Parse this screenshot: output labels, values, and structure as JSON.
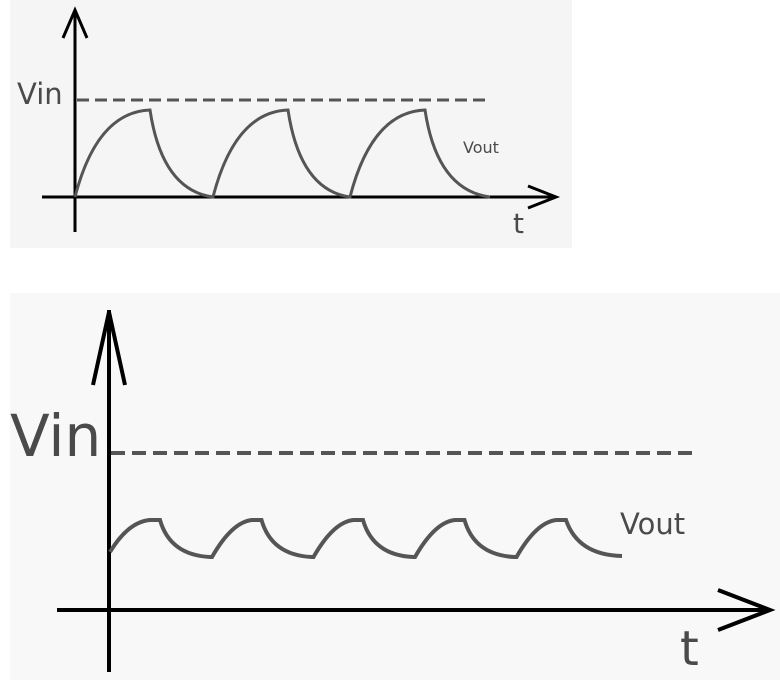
{
  "colors": {
    "axis": "#000000",
    "curve": "#555555",
    "dashed": "#555555",
    "panel_bg": "#f6f6f6"
  },
  "top_diagram": {
    "y_label": "Vin",
    "curve_label": "Vout",
    "x_label": "t"
  },
  "bottom_diagram": {
    "y_label": "Vin",
    "curve_label": "Vout",
    "x_label": "t"
  }
}
